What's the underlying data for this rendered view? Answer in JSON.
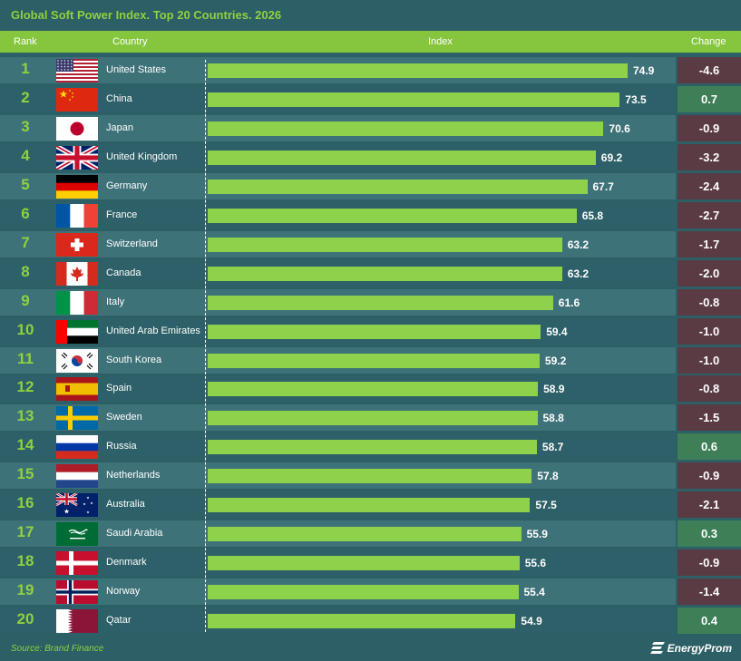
{
  "title": "Global Soft Power Index. Top 20 Countries. 2026",
  "header": {
    "rank": "Rank",
    "country": "Country",
    "index": "Index",
    "change": "Change"
  },
  "source": "Source: Brand Finance",
  "brand": "EnergyProm",
  "colors": {
    "background": "#2c5f66",
    "band_dark": "#2d6068",
    "band_light": "#3e7279",
    "accent": "#86c63e",
    "bar": "#8ed14a",
    "change_negative": "#5a3b44",
    "change_positive": "#3f7f58"
  },
  "chart_data": {
    "type": "bar",
    "orientation": "horizontal",
    "title": "Global Soft Power Index. Top 20 Countries. 2026",
    "columns": [
      "Rank",
      "Country",
      "Index",
      "Change"
    ],
    "rows": [
      {
        "rank": 1,
        "country": "United States",
        "flag": "us",
        "index": 74.9,
        "index_label": "74.9",
        "change": -4.6,
        "change_label": "-4.6"
      },
      {
        "rank": 2,
        "country": "China",
        "flag": "cn",
        "index": 73.5,
        "index_label": "73.5",
        "change": 0.7,
        "change_label": "0.7"
      },
      {
        "rank": 3,
        "country": "Japan",
        "flag": "jp",
        "index": 70.6,
        "index_label": "70.6",
        "change": -0.9,
        "change_label": "-0.9"
      },
      {
        "rank": 4,
        "country": "United Kingdom",
        "flag": "gb",
        "index": 69.2,
        "index_label": "69.2",
        "change": -3.2,
        "change_label": "-3.2"
      },
      {
        "rank": 5,
        "country": "Germany",
        "flag": "de",
        "index": 67.7,
        "index_label": "67.7",
        "change": -2.4,
        "change_label": "-2.4"
      },
      {
        "rank": 6,
        "country": "France",
        "flag": "fr",
        "index": 65.8,
        "index_label": "65.8",
        "change": -2.7,
        "change_label": "-2.7"
      },
      {
        "rank": 7,
        "country": "Switzerland",
        "flag": "ch",
        "index": 63.2,
        "index_label": "63.2",
        "change": -1.7,
        "change_label": "-1.7"
      },
      {
        "rank": 8,
        "country": "Canada",
        "flag": "ca",
        "index": 63.2,
        "index_label": "63.2",
        "change": -2.0,
        "change_label": "-2.0"
      },
      {
        "rank": 9,
        "country": "Italy",
        "flag": "it",
        "index": 61.6,
        "index_label": "61.6",
        "change": -0.8,
        "change_label": "-0.8"
      },
      {
        "rank": 10,
        "country": "United Arab Emirates",
        "flag": "ae",
        "index": 59.4,
        "index_label": "59.4",
        "change": -1.0,
        "change_label": "-1.0"
      },
      {
        "rank": 11,
        "country": "South Korea",
        "flag": "kr",
        "index": 59.2,
        "index_label": "59.2",
        "change": -1.0,
        "change_label": "-1.0"
      },
      {
        "rank": 12,
        "country": "Spain",
        "flag": "es",
        "index": 58.9,
        "index_label": "58.9",
        "change": -0.8,
        "change_label": "-0.8"
      },
      {
        "rank": 13,
        "country": "Sweden",
        "flag": "se",
        "index": 58.8,
        "index_label": "58.8",
        "change": -1.5,
        "change_label": "-1.5"
      },
      {
        "rank": 14,
        "country": "Russia",
        "flag": "ru",
        "index": 58.7,
        "index_label": "58.7",
        "change": 0.6,
        "change_label": "0.6"
      },
      {
        "rank": 15,
        "country": "Netherlands",
        "flag": "nl",
        "index": 57.8,
        "index_label": "57.8",
        "change": -0.9,
        "change_label": "-0.9"
      },
      {
        "rank": 16,
        "country": "Australia",
        "flag": "au",
        "index": 57.5,
        "index_label": "57.5",
        "change": -2.1,
        "change_label": "-2.1"
      },
      {
        "rank": 17,
        "country": "Saudi Arabia",
        "flag": "sa",
        "index": 55.9,
        "index_label": "55.9",
        "change": 0.3,
        "change_label": "0.3"
      },
      {
        "rank": 18,
        "country": "Denmark",
        "flag": "dk",
        "index": 55.6,
        "index_label": "55.6",
        "change": -0.9,
        "change_label": "-0.9"
      },
      {
        "rank": 19,
        "country": "Norway",
        "flag": "no",
        "index": 55.4,
        "index_label": "55.4",
        "change": -1.4,
        "change_label": "-1.4"
      },
      {
        "rank": 20,
        "country": "Qatar",
        "flag": "qa",
        "index": 54.9,
        "index_label": "54.9",
        "change": 0.4,
        "change_label": "0.4"
      }
    ],
    "xlim": [
      0,
      90
    ],
    "grid": false,
    "legend": "none"
  }
}
